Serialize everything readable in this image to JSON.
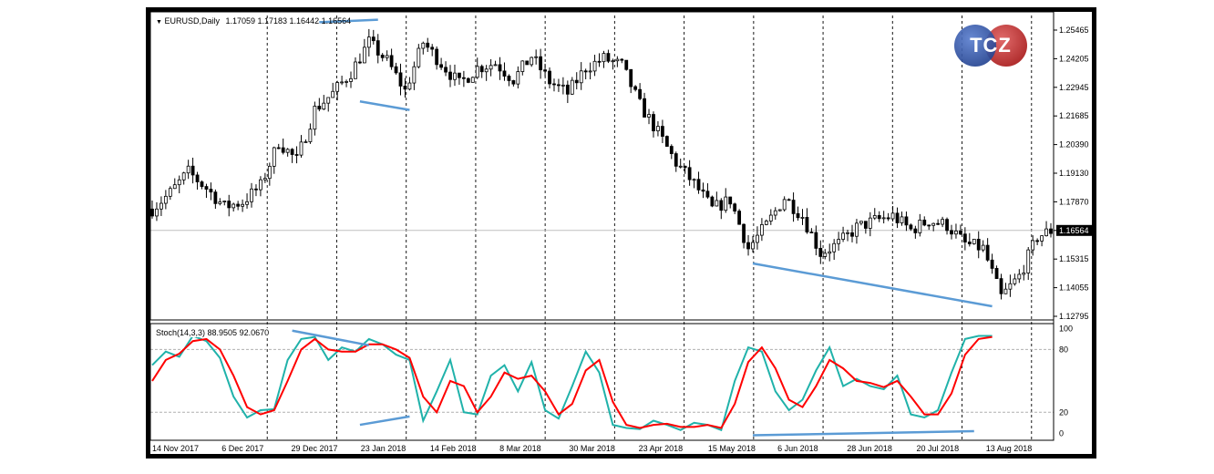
{
  "header": {
    "symbol": "EURUSD,Daily",
    "ohlc": "1.17059 1.17183 1.16442 1.16564"
  },
  "logo": {
    "text": "TCZ"
  },
  "stoch_header": {
    "label": "Stoch(14,3,3) 88.9505 92.0670"
  },
  "colors": {
    "candle": "#000000",
    "grid": "#000000",
    "trendline": "#5b9bd5",
    "stoch_main": "#20b2aa",
    "stoch_signal": "#ff0000",
    "current_price_bg": "#000000"
  },
  "chart_data": [
    {
      "type": "candlestick",
      "symbol": "EURUSD",
      "timeframe": "Daily",
      "current_price": "1.16564",
      "y_ticks": [
        "1.25465",
        "1.24205",
        "1.22945",
        "1.21685",
        "1.20390",
        "1.19130",
        "1.17870",
        "1.16564",
        "1.15315",
        "1.14055",
        "1.12795"
      ],
      "ylim": [
        1.1263,
        1.2594
      ],
      "x_ticks": [
        "14 Nov 2017",
        "6 Dec 2017",
        "29 Dec 2017",
        "23 Jan 2018",
        "14 Feb 2018",
        "8 Mar 2018",
        "30 Mar 2018",
        "23 Apr 2018",
        "15 May 2018",
        "6 Jun 2018",
        "28 Jun 2018",
        "20 Jul 2018",
        "13 Aug 2018"
      ],
      "close_path": [
        [
          0,
          1.175
        ],
        [
          4,
          1.182
        ],
        [
          8,
          1.191
        ],
        [
          12,
          1.184
        ],
        [
          16,
          1.176
        ],
        [
          20,
          1.178
        ],
        [
          24,
          1.185
        ],
        [
          28,
          1.204
        ],
        [
          32,
          1.196
        ],
        [
          36,
          1.218
        ],
        [
          40,
          1.225
        ],
        [
          44,
          1.234
        ],
        [
          48,
          1.247
        ],
        [
          52,
          1.239
        ],
        [
          56,
          1.226
        ],
        [
          60,
          1.247
        ],
        [
          64,
          1.238
        ],
        [
          68,
          1.229
        ],
        [
          72,
          1.236
        ],
        [
          76,
          1.238
        ],
        [
          80,
          1.231
        ],
        [
          84,
          1.241
        ],
        [
          88,
          1.23
        ],
        [
          92,
          1.225
        ],
        [
          96,
          1.236
        ],
        [
          100,
          1.24
        ],
        [
          104,
          1.237
        ],
        [
          108,
          1.22
        ],
        [
          112,
          1.208
        ],
        [
          116,
          1.195
        ],
        [
          120,
          1.186
        ],
        [
          124,
          1.175
        ],
        [
          128,
          1.179
        ],
        [
          132,
          1.158
        ],
        [
          136,
          1.168
        ],
        [
          140,
          1.18
        ],
        [
          144,
          1.172
        ],
        [
          148,
          1.156
        ],
        [
          152,
          1.16
        ],
        [
          156,
          1.167
        ],
        [
          160,
          1.17
        ],
        [
          164,
          1.172
        ],
        [
          168,
          1.166
        ],
        [
          172,
          1.17
        ],
        [
          176,
          1.168
        ],
        [
          180,
          1.16
        ],
        [
          184,
          1.158
        ],
        [
          188,
          1.137
        ],
        [
          192,
          1.146
        ],
        [
          196,
          1.163
        ],
        [
          199,
          1.1656
        ]
      ],
      "series": [
        {
          "name": "",
          "style": "trendline",
          "points": [
            [
              37,
              1.2557
            ],
            [
              50,
              1.2568
            ]
          ]
        },
        {
          "name": "",
          "style": "trendline",
          "points": [
            [
              46,
              1.2215
            ],
            [
              57,
              1.2178
            ]
          ]
        },
        {
          "name": "",
          "style": "trendline",
          "points": [
            [
              133,
              1.1515
            ],
            [
              186,
              1.133
            ]
          ]
        }
      ]
    },
    {
      "type": "line",
      "title": "Stoch(14,3,3) 88.9505 92.0670",
      "y_ticks": [
        "100",
        "80",
        "20",
        "0"
      ],
      "ylim": [
        -5,
        103
      ],
      "main_path": [
        [
          0,
          65
        ],
        [
          3,
          78
        ],
        [
          6,
          73
        ],
        [
          9,
          93
        ],
        [
          12,
          88
        ],
        [
          15,
          72
        ],
        [
          18,
          35
        ],
        [
          21,
          15
        ],
        [
          24,
          22
        ],
        [
          27,
          23
        ],
        [
          30,
          70
        ],
        [
          33,
          90
        ],
        [
          36,
          92
        ],
        [
          39,
          70
        ],
        [
          42,
          82
        ],
        [
          45,
          78
        ],
        [
          48,
          90
        ],
        [
          51,
          85
        ],
        [
          54,
          75
        ],
        [
          57,
          70
        ],
        [
          60,
          12
        ],
        [
          63,
          40
        ],
        [
          66,
          70
        ],
        [
          69,
          20
        ],
        [
          72,
          18
        ],
        [
          75,
          55
        ],
        [
          78,
          65
        ],
        [
          81,
          40
        ],
        [
          84,
          68
        ],
        [
          87,
          22
        ],
        [
          90,
          14
        ],
        [
          93,
          45
        ],
        [
          96,
          78
        ],
        [
          99,
          58
        ],
        [
          102,
          8
        ],
        [
          105,
          5
        ],
        [
          108,
          4
        ],
        [
          111,
          12
        ],
        [
          114,
          8
        ],
        [
          117,
          3
        ],
        [
          120,
          10
        ],
        [
          123,
          8
        ],
        [
          126,
          3
        ],
        [
          129,
          50
        ],
        [
          132,
          82
        ],
        [
          135,
          78
        ],
        [
          138,
          40
        ],
        [
          141,
          22
        ],
        [
          144,
          32
        ],
        [
          147,
          60
        ],
        [
          150,
          82
        ],
        [
          153,
          45
        ],
        [
          156,
          52
        ],
        [
          159,
          45
        ],
        [
          162,
          42
        ],
        [
          165,
          55
        ],
        [
          168,
          18
        ],
        [
          171,
          15
        ],
        [
          174,
          22
        ],
        [
          177,
          58
        ],
        [
          180,
          90
        ],
        [
          183,
          93
        ],
        [
          186,
          93
        ]
      ],
      "signal_path": [
        [
          0,
          50
        ],
        [
          3,
          70
        ],
        [
          6,
          76
        ],
        [
          9,
          88
        ],
        [
          12,
          90
        ],
        [
          15,
          80
        ],
        [
          18,
          55
        ],
        [
          21,
          25
        ],
        [
          24,
          18
        ],
        [
          27,
          22
        ],
        [
          30,
          50
        ],
        [
          33,
          80
        ],
        [
          36,
          90
        ],
        [
          39,
          80
        ],
        [
          42,
          78
        ],
        [
          45,
          78
        ],
        [
          48,
          85
        ],
        [
          51,
          85
        ],
        [
          54,
          80
        ],
        [
          57,
          72
        ],
        [
          60,
          35
        ],
        [
          63,
          20
        ],
        [
          66,
          50
        ],
        [
          69,
          45
        ],
        [
          72,
          20
        ],
        [
          75,
          35
        ],
        [
          78,
          58
        ],
        [
          81,
          52
        ],
        [
          84,
          55
        ],
        [
          87,
          40
        ],
        [
          90,
          18
        ],
        [
          93,
          28
        ],
        [
          96,
          60
        ],
        [
          99,
          70
        ],
        [
          102,
          30
        ],
        [
          105,
          8
        ],
        [
          108,
          5
        ],
        [
          111,
          8
        ],
        [
          114,
          9
        ],
        [
          117,
          6
        ],
        [
          120,
          6
        ],
        [
          123,
          8
        ],
        [
          126,
          5
        ],
        [
          129,
          28
        ],
        [
          132,
          68
        ],
        [
          135,
          82
        ],
        [
          138,
          62
        ],
        [
          141,
          32
        ],
        [
          144,
          25
        ],
        [
          147,
          45
        ],
        [
          150,
          70
        ],
        [
          153,
          62
        ],
        [
          156,
          50
        ],
        [
          159,
          48
        ],
        [
          162,
          44
        ],
        [
          165,
          50
        ],
        [
          168,
          35
        ],
        [
          171,
          18
        ],
        [
          174,
          18
        ],
        [
          177,
          38
        ],
        [
          180,
          75
        ],
        [
          183,
          90
        ],
        [
          186,
          92
        ]
      ],
      "series": [
        {
          "name": "",
          "style": "trendline",
          "points": [
            [
              31,
              98
            ],
            [
              48,
              84
            ]
          ]
        },
        {
          "name": "",
          "style": "trendline",
          "points": [
            [
              46,
              8
            ],
            [
              57,
              16
            ]
          ]
        },
        {
          "name": "",
          "style": "trendline",
          "points": [
            [
              133,
              -2
            ],
            [
              182,
              2
            ]
          ]
        }
      ],
      "levels": [
        80,
        20
      ]
    }
  ]
}
